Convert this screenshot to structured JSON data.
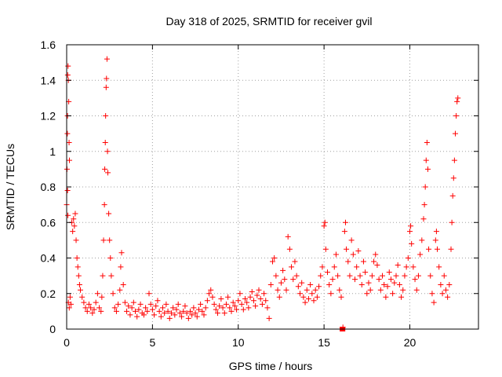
{
  "chart_data": {
    "type": "scatter",
    "title": "Day 318 of 2025, SRMTID for receiver gvil",
    "xlabel": "GPS time / hours",
    "ylabel": "SRMTID / TECUs",
    "xlim": [
      0,
      24
    ],
    "ylim": [
      0,
      1.6
    ],
    "xticks": [
      0,
      5,
      10,
      15,
      20
    ],
    "yticks": [
      0,
      0.2,
      0.4,
      0.6,
      0.8,
      1,
      1.2,
      1.4,
      1.6
    ],
    "ytick_labels": [
      "0",
      "0.2",
      "0.4",
      "0.6",
      "0.8",
      "1",
      "1.2",
      "1.4",
      "1.6"
    ],
    "grid": true,
    "marker": "+",
    "color": "#ff0000",
    "series": [
      {
        "name": "SRMTID",
        "points": [
          [
            0.0,
            0.7
          ],
          [
            0.02,
            0.9
          ],
          [
            0.04,
            1.1
          ],
          [
            0.05,
            1.2
          ],
          [
            0.06,
            1.43
          ],
          [
            0.08,
            1.48
          ],
          [
            0.1,
            1.4
          ],
          [
            0.12,
            1.28
          ],
          [
            0.14,
            1.05
          ],
          [
            0.16,
            0.95
          ],
          [
            0.05,
            0.78
          ],
          [
            0.07,
            0.64
          ],
          [
            0.1,
            0.15
          ],
          [
            0.15,
            0.12
          ],
          [
            0.2,
            0.18
          ],
          [
            0.25,
            0.14
          ],
          [
            0.3,
            0.6
          ],
          [
            0.35,
            0.55
          ],
          [
            0.4,
            0.62
          ],
          [
            0.45,
            0.58
          ],
          [
            0.5,
            0.65
          ],
          [
            0.55,
            0.5
          ],
          [
            0.6,
            0.4
          ],
          [
            0.65,
            0.35
          ],
          [
            0.7,
            0.3
          ],
          [
            0.75,
            0.25
          ],
          [
            0.8,
            0.22
          ],
          [
            0.9,
            0.18
          ],
          [
            1.0,
            0.15
          ],
          [
            1.1,
            0.12
          ],
          [
            1.2,
            0.1
          ],
          [
            1.3,
            0.14
          ],
          [
            1.4,
            0.12
          ],
          [
            1.5,
            0.09
          ],
          [
            1.6,
            0.11
          ],
          [
            1.7,
            0.15
          ],
          [
            1.8,
            0.2
          ],
          [
            1.9,
            0.12
          ],
          [
            2.0,
            0.1
          ],
          [
            2.05,
            0.18
          ],
          [
            2.1,
            0.3
          ],
          [
            2.15,
            0.5
          ],
          [
            2.2,
            0.7
          ],
          [
            2.22,
            0.9
          ],
          [
            2.25,
            1.05
          ],
          [
            2.27,
            1.2
          ],
          [
            2.3,
            1.36
          ],
          [
            2.32,
            1.41
          ],
          [
            2.35,
            1.52
          ],
          [
            2.38,
            1.0
          ],
          [
            2.4,
            0.88
          ],
          [
            2.45,
            0.65
          ],
          [
            2.5,
            0.5
          ],
          [
            2.55,
            0.4
          ],
          [
            2.6,
            0.3
          ],
          [
            2.7,
            0.2
          ],
          [
            2.8,
            0.12
          ],
          [
            2.9,
            0.1
          ],
          [
            3.0,
            0.14
          ],
          [
            3.1,
            0.22
          ],
          [
            3.15,
            0.35
          ],
          [
            3.2,
            0.43
          ],
          [
            3.3,
            0.25
          ],
          [
            3.4,
            0.15
          ],
          [
            3.5,
            0.1
          ],
          [
            3.6,
            0.13
          ],
          [
            3.7,
            0.08
          ],
          [
            3.8,
            0.12
          ],
          [
            3.9,
            0.15
          ],
          [
            4.0,
            0.1
          ],
          [
            4.1,
            0.07
          ],
          [
            4.2,
            0.11
          ],
          [
            4.3,
            0.14
          ],
          [
            4.4,
            0.09
          ],
          [
            4.5,
            0.08
          ],
          [
            4.6,
            0.12
          ],
          [
            4.7,
            0.1
          ],
          [
            4.8,
            0.2
          ],
          [
            4.9,
            0.14
          ],
          [
            5.0,
            0.11
          ],
          [
            5.1,
            0.08
          ],
          [
            5.2,
            0.13
          ],
          [
            5.3,
            0.16
          ],
          [
            5.4,
            0.1
          ],
          [
            5.5,
            0.07
          ],
          [
            5.6,
            0.12
          ],
          [
            5.7,
            0.09
          ],
          [
            5.8,
            0.14
          ],
          [
            5.9,
            0.1
          ],
          [
            6.0,
            0.06
          ],
          [
            6.1,
            0.09
          ],
          [
            6.2,
            0.12
          ],
          [
            6.3,
            0.08
          ],
          [
            6.4,
            0.11
          ],
          [
            6.5,
            0.14
          ],
          [
            6.6,
            0.09
          ],
          [
            6.7,
            0.07
          ],
          [
            6.8,
            0.1
          ],
          [
            6.9,
            0.13
          ],
          [
            7.0,
            0.09
          ],
          [
            7.1,
            0.06
          ],
          [
            7.2,
            0.1
          ],
          [
            7.3,
            0.08
          ],
          [
            7.4,
            0.12
          ],
          [
            7.5,
            0.09
          ],
          [
            7.6,
            0.07
          ],
          [
            7.7,
            0.11
          ],
          [
            7.8,
            0.14
          ],
          [
            7.9,
            0.1
          ],
          [
            8.0,
            0.08
          ],
          [
            8.1,
            0.12
          ],
          [
            8.2,
            0.16
          ],
          [
            8.3,
            0.2
          ],
          [
            8.4,
            0.22
          ],
          [
            8.5,
            0.18
          ],
          [
            8.6,
            0.14
          ],
          [
            8.7,
            0.11
          ],
          [
            8.8,
            0.09
          ],
          [
            8.9,
            0.13
          ],
          [
            9.0,
            0.17
          ],
          [
            9.1,
            0.12
          ],
          [
            9.2,
            0.09
          ],
          [
            9.3,
            0.14
          ],
          [
            9.4,
            0.18
          ],
          [
            9.5,
            0.12
          ],
          [
            9.6,
            0.1
          ],
          [
            9.7,
            0.15
          ],
          [
            9.8,
            0.13
          ],
          [
            9.9,
            0.11
          ],
          [
            10.0,
            0.16
          ],
          [
            10.1,
            0.2
          ],
          [
            10.2,
            0.14
          ],
          [
            10.3,
            0.11
          ],
          [
            10.4,
            0.17
          ],
          [
            10.5,
            0.15
          ],
          [
            10.6,
            0.12
          ],
          [
            10.7,
            0.18
          ],
          [
            10.8,
            0.21
          ],
          [
            10.9,
            0.16
          ],
          [
            11.0,
            0.13
          ],
          [
            11.1,
            0.19
          ],
          [
            11.2,
            0.22
          ],
          [
            11.3,
            0.17
          ],
          [
            11.4,
            0.14
          ],
          [
            11.5,
            0.2
          ],
          [
            11.6,
            0.16
          ],
          [
            11.7,
            0.12
          ],
          [
            11.8,
            0.06
          ],
          [
            11.9,
            0.25
          ],
          [
            12.0,
            0.38
          ],
          [
            12.1,
            0.4
          ],
          [
            12.2,
            0.3
          ],
          [
            12.3,
            0.22
          ],
          [
            12.4,
            0.18
          ],
          [
            12.5,
            0.26
          ],
          [
            12.6,
            0.33
          ],
          [
            12.7,
            0.28
          ],
          [
            12.8,
            0.22
          ],
          [
            12.9,
            0.52
          ],
          [
            13.0,
            0.45
          ],
          [
            13.1,
            0.35
          ],
          [
            13.2,
            0.28
          ],
          [
            13.3,
            0.38
          ],
          [
            13.4,
            0.3
          ],
          [
            13.5,
            0.24
          ],
          [
            13.6,
            0.2
          ],
          [
            13.7,
            0.26
          ],
          [
            13.8,
            0.18
          ],
          [
            13.9,
            0.15
          ],
          [
            14.0,
            0.22
          ],
          [
            14.1,
            0.17
          ],
          [
            14.2,
            0.25
          ],
          [
            14.3,
            0.2
          ],
          [
            14.4,
            0.16
          ],
          [
            14.5,
            0.22
          ],
          [
            14.6,
            0.18
          ],
          [
            14.7,
            0.24
          ],
          [
            14.8,
            0.3
          ],
          [
            14.9,
            0.35
          ],
          [
            15.0,
            0.58
          ],
          [
            15.05,
            0.6
          ],
          [
            15.1,
            0.45
          ],
          [
            15.2,
            0.32
          ],
          [
            15.3,
            0.25
          ],
          [
            15.4,
            0.2
          ],
          [
            15.5,
            0.28
          ],
          [
            15.6,
            0.35
          ],
          [
            15.7,
            0.42
          ],
          [
            15.8,
            0.3
          ],
          [
            15.9,
            0.22
          ],
          [
            16.0,
            0.18
          ],
          [
            16.1,
            0.01
          ],
          [
            16.2,
            0.55
          ],
          [
            16.25,
            0.6
          ],
          [
            16.3,
            0.45
          ],
          [
            16.4,
            0.38
          ],
          [
            16.5,
            0.3
          ],
          [
            16.6,
            0.5
          ],
          [
            16.7,
            0.42
          ],
          [
            16.8,
            0.28
          ],
          [
            16.9,
            0.35
          ],
          [
            17.0,
            0.44
          ],
          [
            17.1,
            0.3
          ],
          [
            17.2,
            0.25
          ],
          [
            17.3,
            0.38
          ],
          [
            17.4,
            0.32
          ],
          [
            17.5,
            0.2
          ],
          [
            17.6,
            0.26
          ],
          [
            17.7,
            0.22
          ],
          [
            17.8,
            0.3
          ],
          [
            17.9,
            0.38
          ],
          [
            18.0,
            0.42
          ],
          [
            18.1,
            0.36
          ],
          [
            18.2,
            0.28
          ],
          [
            18.3,
            0.22
          ],
          [
            18.4,
            0.3
          ],
          [
            18.5,
            0.25
          ],
          [
            18.6,
            0.18
          ],
          [
            18.7,
            0.24
          ],
          [
            18.8,
            0.32
          ],
          [
            18.9,
            0.28
          ],
          [
            19.0,
            0.2
          ],
          [
            19.1,
            0.26
          ],
          [
            19.2,
            0.3
          ],
          [
            19.3,
            0.36
          ],
          [
            19.4,
            0.25
          ],
          [
            19.5,
            0.18
          ],
          [
            19.6,
            0.22
          ],
          [
            19.7,
            0.3
          ],
          [
            19.8,
            0.35
          ],
          [
            19.9,
            0.4
          ],
          [
            20.0,
            0.55
          ],
          [
            20.05,
            0.58
          ],
          [
            20.1,
            0.48
          ],
          [
            20.2,
            0.35
          ],
          [
            20.3,
            0.28
          ],
          [
            20.4,
            0.22
          ],
          [
            20.5,
            0.3
          ],
          [
            20.6,
            0.42
          ],
          [
            20.7,
            0.5
          ],
          [
            20.8,
            0.62
          ],
          [
            20.85,
            0.7
          ],
          [
            20.9,
            0.8
          ],
          [
            20.95,
            0.95
          ],
          [
            21.0,
            1.05
          ],
          [
            21.05,
            0.9
          ],
          [
            21.1,
            0.45
          ],
          [
            21.2,
            0.3
          ],
          [
            21.3,
            0.2
          ],
          [
            21.4,
            0.15
          ],
          [
            21.5,
            0.5
          ],
          [
            21.55,
            0.55
          ],
          [
            21.6,
            0.45
          ],
          [
            21.7,
            0.35
          ],
          [
            21.8,
            0.25
          ],
          [
            21.9,
            0.2
          ],
          [
            22.0,
            0.3
          ],
          [
            22.1,
            0.22
          ],
          [
            22.2,
            0.18
          ],
          [
            22.3,
            0.25
          ],
          [
            22.4,
            0.45
          ],
          [
            22.45,
            0.6
          ],
          [
            22.5,
            0.75
          ],
          [
            22.55,
            0.85
          ],
          [
            22.6,
            0.95
          ],
          [
            22.65,
            1.1
          ],
          [
            22.7,
            1.2
          ],
          [
            22.75,
            1.28
          ],
          [
            22.8,
            1.3
          ]
        ],
        "flagged_points": [
          [
            16.05,
            0.0
          ],
          [
            16.1,
            0.0
          ]
        ]
      }
    ]
  }
}
